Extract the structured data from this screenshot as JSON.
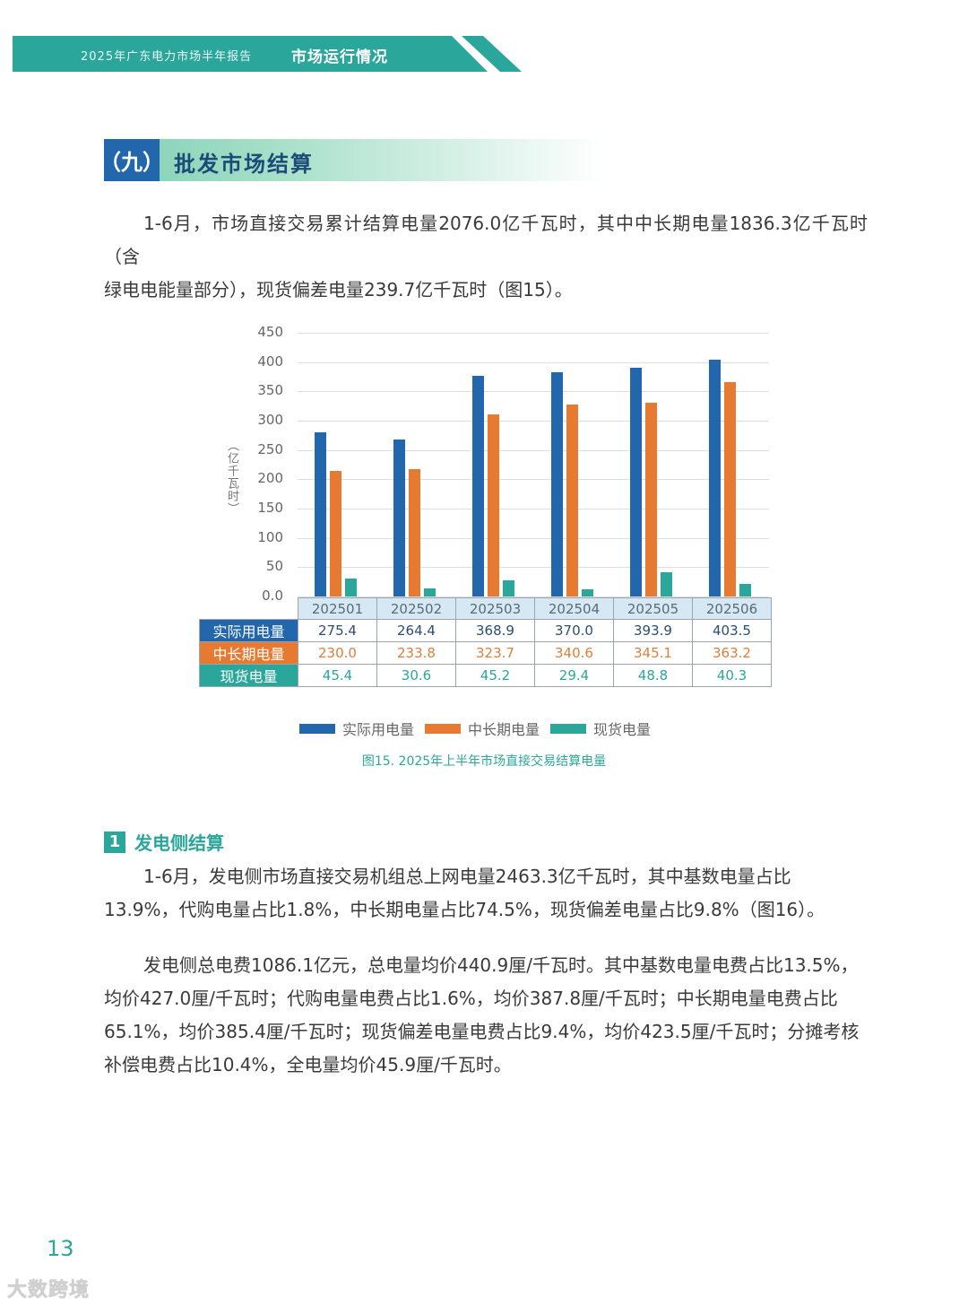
{
  "header": {
    "report_title": "2025年广东电力市场半年报告",
    "chapter_title": "市场运行情况",
    "band_color": "#2ba69a"
  },
  "section": {
    "number": "（九）",
    "title": "批发市场结算"
  },
  "paragraphs": {
    "p1_line1": "1-6月，市场直接交易累计结算电量2076.0亿千瓦时，其中中长期电量1836.3亿千瓦时（含",
    "p1_line2": "绿电电能量部分），现货偏差电量239.7亿千瓦时（图15）。",
    "p2_line1": "1-6月，发电侧市场直接交易机组总上网电量2463.3亿千瓦时，其中基数电量占比",
    "p2_line2": "13.9%，代购电量占比1.8%，中长期电量占比74.5%，现货偏差电量占比9.8%（图16）。",
    "p3_line1": "发电侧总电费1086.1亿元，总电量均价440.9厘/千瓦时。其中基数电量电费占比13.5%，",
    "p3_line2": "均价427.0厘/千瓦时；代购电量电费占比1.6%，均价387.8厘/千瓦时；中长期电量电费占比",
    "p3_line3": "65.1%，均价385.4厘/千瓦时；现货偏差电量电费占比9.4%，均价423.5厘/千瓦时；分摊考核",
    "p3_line4": "补偿电费占比10.4%，全电量均价45.9厘/千瓦时。"
  },
  "subsection": {
    "number": "1",
    "title": "发电侧结算"
  },
  "chart_data": {
    "type": "bar",
    "title": "图15. 2025年上半年市场直接交易结算电量",
    "xlabel": "",
    "ylabel": "（亿千瓦时）",
    "ylim": [
      0,
      450
    ],
    "yticks": [
      "0.0",
      "50",
      "100",
      "150",
      "200",
      "250",
      "300",
      "350",
      "400",
      "450"
    ],
    "grid": true,
    "legend_position": "bottom",
    "categories": [
      "202501",
      "202502",
      "202503",
      "202504",
      "202505",
      "202506"
    ],
    "series": [
      {
        "name": "实际用电量",
        "color": "#2266ab",
        "values": [
          275.4,
          264.4,
          368.9,
          370.0,
          393.9,
          403.5
        ],
        "labels": [
          "275.4",
          "264.4",
          "368.9",
          "370.0",
          "393.9",
          "403.5"
        ]
      },
      {
        "name": "中长期电量",
        "color": "#e67a33",
        "values": [
          230.0,
          233.8,
          323.7,
          340.6,
          345.1,
          363.2
        ],
        "labels": [
          "230.0",
          "233.8",
          "323.7",
          "340.6",
          "345.1",
          "363.2"
        ]
      },
      {
        "name": "现货电量",
        "color": "#2ba69a",
        "values": [
          45.4,
          30.6,
          45.2,
          29.4,
          48.8,
          40.3
        ],
        "labels": [
          "45.4",
          "30.6",
          "45.2",
          "29.4",
          "48.8",
          "40.3"
        ]
      }
    ],
    "drawn_bar_heights_approx": [
      [
        280,
        268,
        376,
        382,
        391,
        404
      ],
      [
        215,
        218,
        310,
        327,
        330,
        366
      ],
      [
        30,
        14,
        28,
        13,
        41,
        22
      ]
    ]
  },
  "footer": {
    "page_number": "13",
    "watermark": "大数跨境"
  }
}
